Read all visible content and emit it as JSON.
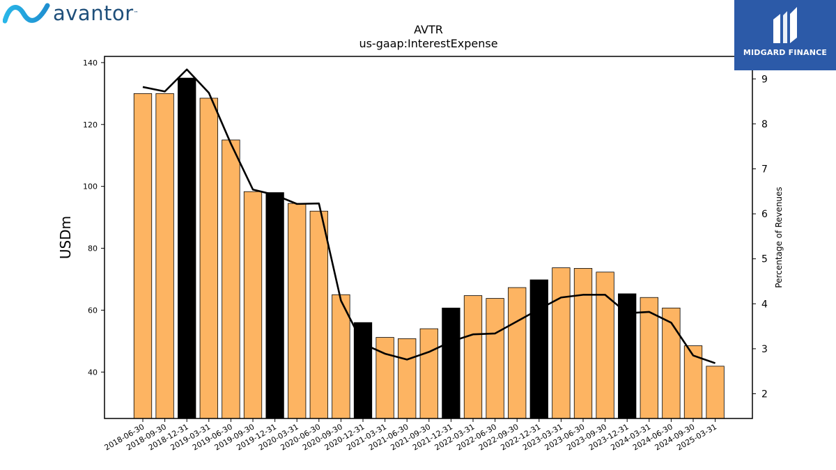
{
  "brand_left": {
    "name": "avantor",
    "tm": "™"
  },
  "brand_right": {
    "name": "MIDGARD FINANCE"
  },
  "chart_data": {
    "type": "bar",
    "title": "AVTR",
    "subtitle": "us-gaap:InterestExpense",
    "ylabel": "USDm",
    "y2label": "Percentage of Revenues",
    "ylim": [
      25,
      142
    ],
    "y2lim": [
      1.45,
      9.5
    ],
    "yticks": [
      40,
      60,
      80,
      100,
      120,
      140
    ],
    "y2ticks": [
      2,
      3,
      4,
      5,
      6,
      7,
      8,
      9
    ],
    "categories": [
      "2018-06-30",
      "2018-09-30",
      "2018-12-31",
      "2019-03-31",
      "2019-06-30",
      "2019-09-30",
      "2019-12-31",
      "2020-03-31",
      "2020-06-30",
      "2020-09-30",
      "2020-12-31",
      "2021-03-31",
      "2021-06-30",
      "2021-09-30",
      "2021-12-31",
      "2022-03-31",
      "2022-06-30",
      "2022-09-30",
      "2022-12-31",
      "2023-03-31",
      "2023-06-30",
      "2023-09-30",
      "2023-12-31",
      "2024-03-31",
      "2024-06-30",
      "2024-09-30",
      "2025-03-31"
    ],
    "series": [
      {
        "type": "bar",
        "axis": "left",
        "values": [
          130,
          130,
          135,
          128.5,
          115,
          98.3,
          98,
          94.5,
          92,
          65,
          56,
          51.2,
          50.8,
          54,
          60.7,
          64.7,
          63.8,
          67.3,
          69.8,
          73.7,
          73.5,
          72.3,
          65.3,
          64.1,
          60.7,
          48.5,
          41.9
        ],
        "highlight": [
          false,
          false,
          true,
          false,
          false,
          false,
          true,
          false,
          false,
          false,
          true,
          false,
          false,
          false,
          true,
          false,
          false,
          false,
          true,
          false,
          false,
          false,
          true,
          false,
          false,
          false,
          false
        ]
      },
      {
        "type": "line",
        "axis": "right",
        "values": [
          8.82,
          8.72,
          9.21,
          8.69,
          7.56,
          6.54,
          6.42,
          6.22,
          6.23,
          4.07,
          3.11,
          2.89,
          2.76,
          2.93,
          3.16,
          3.32,
          3.34,
          3.61,
          3.88,
          4.14,
          4.2,
          4.2,
          3.79,
          3.82,
          3.58,
          2.85,
          2.68
        ]
      }
    ],
    "colors": {
      "bar": "#fdb462",
      "bar_highlight": "#000000",
      "line": "#000000"
    },
    "grid": false
  }
}
